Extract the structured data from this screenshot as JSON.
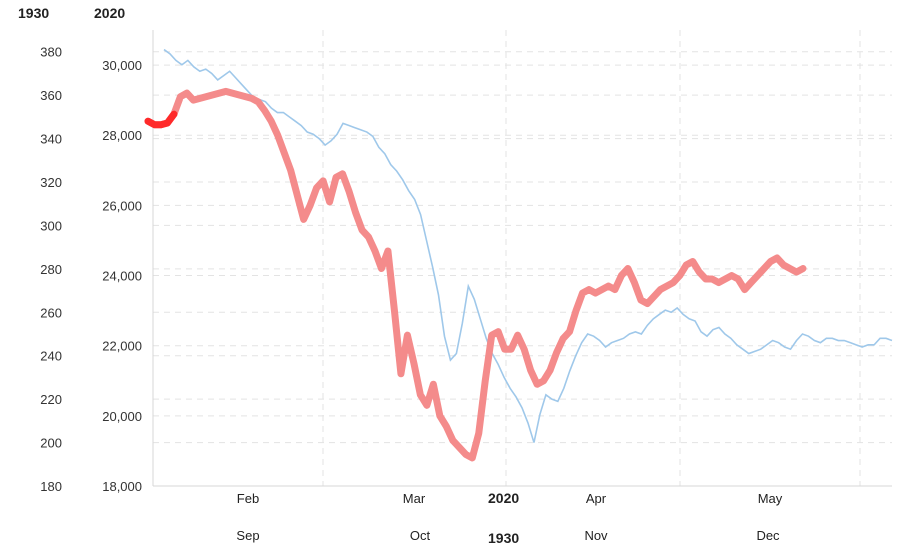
{
  "chart_data": {
    "type": "line",
    "title": "",
    "left_axis": {
      "label": "1930",
      "ticks": [
        180,
        200,
        220,
        240,
        260,
        280,
        300,
        320,
        340,
        360,
        380
      ]
    },
    "right_axis": {
      "label": "2020",
      "ticks": [
        "18,000",
        "20,000",
        "22,000",
        "24,000",
        "26,000",
        "28,000",
        "30,000"
      ]
    },
    "x_axis_2020": {
      "label": "2020",
      "months": [
        "Feb",
        "Mar",
        "Apr",
        "May"
      ]
    },
    "x_axis_1930": {
      "label": "1930",
      "months": [
        "Sep",
        "Oct",
        "Nov",
        "Dec"
      ]
    },
    "series": [
      {
        "name": "",
        "color": "#f48b8b",
        "points": [
          [
            0,
            28400
          ],
          [
            6,
            28300
          ],
          [
            12,
            28300
          ],
          [
            18,
            28350
          ],
          [
            24,
            28600
          ],
          [
            30,
            29100
          ],
          [
            36,
            29200
          ],
          [
            42,
            29000
          ],
          [
            48,
            29050
          ],
          [
            54,
            29100
          ],
          [
            60,
            29150
          ],
          [
            66,
            29200
          ],
          [
            72,
            29250
          ],
          [
            78,
            29200
          ],
          [
            84,
            29150
          ],
          [
            90,
            29100
          ],
          [
            96,
            29050
          ],
          [
            102,
            28950
          ],
          [
            108,
            28700
          ],
          [
            114,
            28400
          ],
          [
            120,
            28000
          ],
          [
            126,
            27500
          ],
          [
            132,
            27000
          ],
          [
            138,
            26300
          ],
          [
            144,
            25600
          ],
          [
            150,
            26000
          ],
          [
            156,
            26500
          ],
          [
            162,
            26700
          ],
          [
            168,
            26100
          ],
          [
            174,
            26800
          ],
          [
            180,
            26900
          ],
          [
            186,
            26400
          ],
          [
            192,
            25800
          ],
          [
            198,
            25300
          ],
          [
            204,
            25100
          ],
          [
            210,
            24700
          ],
          [
            216,
            24200
          ],
          [
            222,
            24700
          ],
          [
            228,
            23000
          ],
          [
            234,
            21200
          ],
          [
            240,
            22300
          ],
          [
            246,
            21500
          ],
          [
            252,
            20600
          ],
          [
            258,
            20300
          ],
          [
            264,
            20900
          ],
          [
            270,
            20000
          ],
          [
            276,
            19700
          ],
          [
            282,
            19300
          ],
          [
            288,
            19100
          ],
          [
            294,
            18900
          ],
          [
            300,
            18800
          ],
          [
            306,
            19500
          ],
          [
            312,
            21000
          ],
          [
            318,
            22300
          ],
          [
            324,
            22400
          ],
          [
            330,
            21900
          ],
          [
            336,
            21900
          ],
          [
            342,
            22300
          ],
          [
            348,
            21900
          ],
          [
            354,
            21300
          ],
          [
            360,
            20900
          ],
          [
            366,
            21000
          ],
          [
            372,
            21300
          ],
          [
            378,
            21800
          ],
          [
            384,
            22200
          ],
          [
            390,
            22400
          ],
          [
            396,
            23000
          ],
          [
            402,
            23500
          ],
          [
            408,
            23600
          ],
          [
            414,
            23500
          ],
          [
            420,
            23600
          ],
          [
            426,
            23700
          ],
          [
            432,
            23600
          ],
          [
            438,
            24000
          ],
          [
            444,
            24200
          ],
          [
            450,
            23800
          ],
          [
            456,
            23300
          ],
          [
            462,
            23200
          ],
          [
            468,
            23400
          ],
          [
            474,
            23600
          ],
          [
            480,
            23700
          ],
          [
            486,
            23800
          ],
          [
            492,
            24000
          ],
          [
            498,
            24300
          ],
          [
            504,
            24400
          ],
          [
            510,
            24100
          ],
          [
            516,
            23900
          ],
          [
            522,
            23900
          ],
          [
            528,
            23800
          ],
          [
            534,
            23900
          ],
          [
            540,
            24000
          ],
          [
            546,
            23900
          ],
          [
            552,
            23600
          ],
          [
            558,
            23800
          ],
          [
            564,
            24000
          ],
          [
            570,
            24200
          ],
          [
            576,
            24400
          ],
          [
            582,
            24500
          ],
          [
            588,
            24300
          ],
          [
            594,
            24200
          ],
          [
            600,
            24100
          ],
          [
            606,
            24200
          ]
        ]
      },
      {
        "name": "",
        "color": "#9fc8ea",
        "points": [
          [
            0,
            381
          ],
          [
            6,
            379
          ],
          [
            12,
            376
          ],
          [
            18,
            374
          ],
          [
            24,
            376
          ],
          [
            30,
            373
          ],
          [
            36,
            371
          ],
          [
            42,
            372
          ],
          [
            48,
            370
          ],
          [
            54,
            367
          ],
          [
            60,
            369
          ],
          [
            66,
            371
          ],
          [
            72,
            368
          ],
          [
            78,
            365
          ],
          [
            84,
            362
          ],
          [
            90,
            359
          ],
          [
            96,
            358
          ],
          [
            102,
            357
          ],
          [
            108,
            354
          ],
          [
            114,
            352
          ],
          [
            120,
            352
          ],
          [
            126,
            350
          ],
          [
            132,
            348
          ],
          [
            138,
            346
          ],
          [
            144,
            343
          ],
          [
            150,
            342
          ],
          [
            156,
            340
          ],
          [
            162,
            337
          ],
          [
            168,
            339
          ],
          [
            174,
            342
          ],
          [
            180,
            347
          ],
          [
            186,
            346
          ],
          [
            192,
            345
          ],
          [
            198,
            344
          ],
          [
            204,
            343
          ],
          [
            210,
            341
          ],
          [
            216,
            336
          ],
          [
            222,
            333
          ],
          [
            228,
            328
          ],
          [
            234,
            325
          ],
          [
            240,
            321
          ],
          [
            246,
            316
          ],
          [
            252,
            312
          ],
          [
            258,
            305
          ],
          [
            264,
            293
          ],
          [
            270,
            281
          ],
          [
            276,
            268
          ],
          [
            282,
            249
          ],
          [
            288,
            238
          ],
          [
            294,
            241
          ],
          [
            300,
            255
          ],
          [
            306,
            272
          ],
          [
            312,
            266
          ],
          [
            318,
            257
          ],
          [
            324,
            248
          ],
          [
            330,
            241
          ],
          [
            336,
            236
          ],
          [
            342,
            230
          ],
          [
            348,
            225
          ],
          [
            354,
            221
          ],
          [
            360,
            216
          ],
          [
            366,
            209
          ],
          [
            372,
            200
          ],
          [
            378,
            213
          ],
          [
            384,
            222
          ],
          [
            390,
            220
          ],
          [
            396,
            219
          ],
          [
            402,
            225
          ],
          [
            408,
            233
          ],
          [
            414,
            240
          ],
          [
            420,
            246
          ],
          [
            426,
            250
          ],
          [
            432,
            249
          ],
          [
            438,
            247
          ],
          [
            444,
            244
          ],
          [
            450,
            246
          ],
          [
            456,
            247
          ],
          [
            462,
            248
          ],
          [
            468,
            250
          ],
          [
            474,
            251
          ],
          [
            480,
            250
          ],
          [
            486,
            254
          ],
          [
            492,
            257
          ],
          [
            498,
            259
          ],
          [
            504,
            261
          ],
          [
            510,
            260
          ],
          [
            516,
            262
          ],
          [
            522,
            259
          ],
          [
            528,
            257
          ],
          [
            534,
            256
          ],
          [
            540,
            251
          ],
          [
            546,
            249
          ],
          [
            552,
            252
          ],
          [
            558,
            253
          ],
          [
            564,
            250
          ],
          [
            570,
            248
          ],
          [
            576,
            245
          ],
          [
            582,
            243
          ],
          [
            588,
            241
          ],
          [
            594,
            242
          ],
          [
            600,
            243
          ],
          [
            606,
            245
          ],
          [
            612,
            247
          ],
          [
            618,
            246
          ],
          [
            624,
            244
          ],
          [
            630,
            243
          ],
          [
            636,
            247
          ],
          [
            642,
            250
          ],
          [
            648,
            249
          ],
          [
            654,
            247
          ],
          [
            660,
            246
          ],
          [
            666,
            248
          ],
          [
            672,
            248
          ],
          [
            678,
            247
          ],
          [
            684,
            247
          ],
          [
            690,
            246
          ],
          [
            696,
            245
          ],
          [
            702,
            244
          ],
          [
            708,
            245
          ],
          [
            714,
            245
          ],
          [
            720,
            248
          ],
          [
            726,
            248
          ],
          [
            732,
            247
          ]
        ]
      }
    ]
  }
}
